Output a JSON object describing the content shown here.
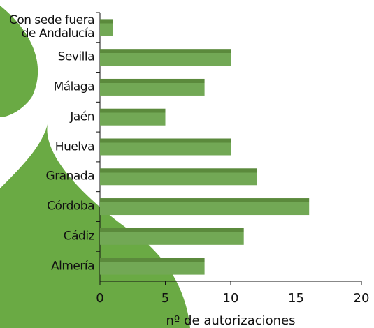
{
  "chart_data": {
    "type": "bar",
    "orientation": "horizontal",
    "x_label": "nº de autorizaciones",
    "categories": [
      "Con sede fuera de Andalucía",
      "Sevilla",
      "Málaga",
      "Jaén",
      "Huelva",
      "Granada",
      "Córdoba",
      "Cádiz",
      "Almería"
    ],
    "values": [
      1,
      10,
      8,
      5,
      10,
      12,
      16,
      11,
      8
    ],
    "color": "#72a855",
    "xlim": [
      0,
      20
    ],
    "xticks": [
      0,
      5,
      10,
      15,
      20
    ],
    "grid": false
  }
}
